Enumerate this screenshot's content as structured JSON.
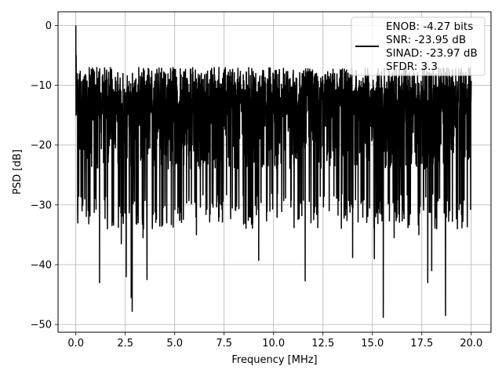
{
  "chart_data": {
    "type": "line",
    "title": "",
    "xlabel": "Frequency [MHz]",
    "ylabel": "PSD [dB]",
    "xlim": [
      -0.9,
      21.0
    ],
    "ylim": [
      -51.3,
      2.3
    ],
    "xticks": [
      0.0,
      2.5,
      5.0,
      7.5,
      10.0,
      12.5,
      15.0,
      17.5,
      20.0
    ],
    "xtick_labels": [
      "0.0",
      "2.5",
      "5.0",
      "7.5",
      "10.0",
      "12.5",
      "15.0",
      "17.5",
      "20.0"
    ],
    "yticks": [
      0,
      -10,
      -20,
      -30,
      -40,
      -50
    ],
    "ytick_labels": [
      "0",
      "−10",
      "−20",
      "−30",
      "−40",
      "−50"
    ],
    "grid": true,
    "legend": {
      "location": "upper right",
      "lines": [
        "ENOB: -4.27 bits",
        "SNR: -23.95 dB",
        "SINAD: -23.97 dB",
        "SFDR: 3.3"
      ]
    },
    "series": [
      {
        "color": "#000000",
        "x_range": [
          0,
          20
        ],
        "dense_band_db": [
          -28,
          -7
        ],
        "dc_peak": [
          0.0,
          0.0
        ],
        "notable_dips": [
          [
            0.45,
            -29
          ],
          [
            1.2,
            -43
          ],
          [
            1.6,
            -34
          ],
          [
            2.3,
            -36.5
          ],
          [
            2.55,
            -42
          ],
          [
            2.8,
            -45.5
          ],
          [
            2.85,
            -47.8
          ],
          [
            3.6,
            -42.5
          ],
          [
            3.4,
            -35.5
          ],
          [
            4.6,
            -33
          ],
          [
            6.1,
            -35
          ],
          [
            9.25,
            -39.3
          ],
          [
            11.6,
            -42.7
          ],
          [
            14.0,
            -38.8
          ],
          [
            15.1,
            -39
          ],
          [
            15.55,
            -48.8
          ],
          [
            16.1,
            -35.5
          ],
          [
            17.35,
            -35
          ],
          [
            17.8,
            -43
          ],
          [
            18.0,
            -41
          ],
          [
            18.7,
            -48.5
          ],
          [
            19.3,
            -34
          ]
        ]
      }
    ]
  }
}
